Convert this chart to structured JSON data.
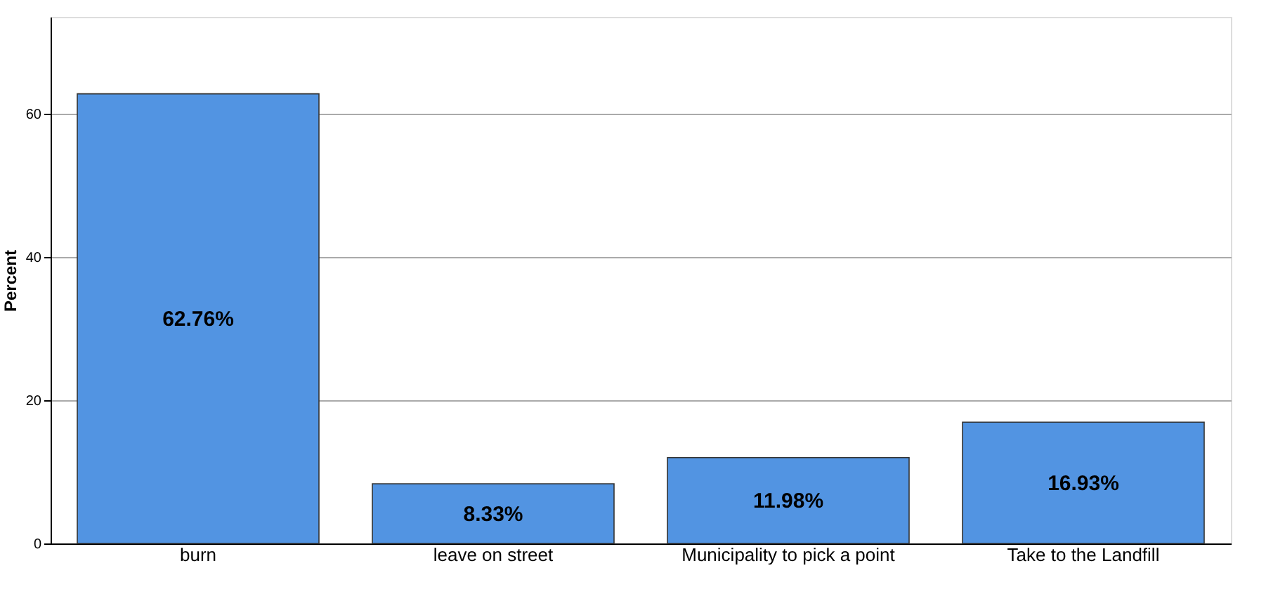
{
  "chart_data": {
    "type": "bar",
    "ylabel": "Percent",
    "categories": [
      "burn",
      "leave on street",
      "Municipality to pick a point",
      "Take to the Landfill"
    ],
    "values": [
      62.76,
      8.33,
      11.98,
      16.93
    ],
    "value_labels": [
      "62.76%",
      "8.33%",
      "11.98%",
      "16.93%"
    ],
    "color": "#5294e2",
    "ylim": [
      0,
      73.5
    ],
    "yticks": [
      0,
      20,
      40,
      60
    ],
    "grid": "y"
  }
}
